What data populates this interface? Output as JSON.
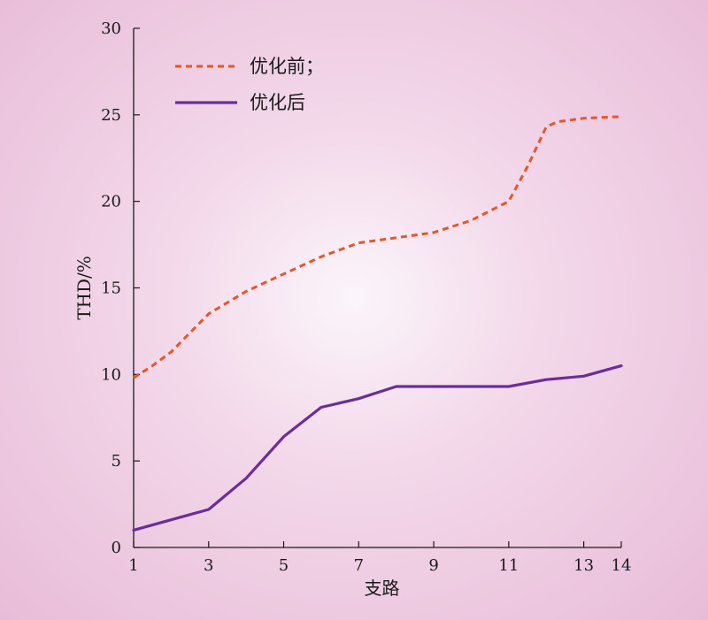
{
  "chart_data": {
    "type": "line",
    "xlabel": "支路",
    "ylabel": "THD/%",
    "xlim": [
      1,
      14
    ],
    "ylim": [
      0,
      30
    ],
    "xticks": [
      1,
      3,
      5,
      7,
      9,
      11,
      13,
      14
    ],
    "yticks": [
      0,
      5,
      10,
      15,
      20,
      25,
      30
    ],
    "grid": false,
    "legend_position": "top-left",
    "series": [
      {
        "name": "优化前；",
        "style": "dashed",
        "color": "#e2582b",
        "x": [
          1,
          1.5,
          2,
          3,
          4,
          5,
          6,
          7,
          8,
          9,
          10,
          11,
          11.5,
          12,
          12.3,
          13,
          14
        ],
        "y": [
          9.8,
          10.5,
          11.3,
          13.5,
          14.8,
          15.8,
          16.8,
          17.6,
          17.9,
          18.2,
          18.9,
          20.0,
          22.0,
          24.3,
          24.6,
          24.8,
          24.9
        ]
      },
      {
        "name": "优化后",
        "style": "solid",
        "color": "#6a2d9c",
        "x": [
          1,
          2,
          3,
          4,
          5,
          6,
          7,
          8,
          9,
          10,
          11,
          12,
          13,
          14
        ],
        "y": [
          1.0,
          1.6,
          2.2,
          4.0,
          6.4,
          8.1,
          8.6,
          9.3,
          9.3,
          9.3,
          9.3,
          9.7,
          9.9,
          10.5
        ]
      }
    ]
  }
}
